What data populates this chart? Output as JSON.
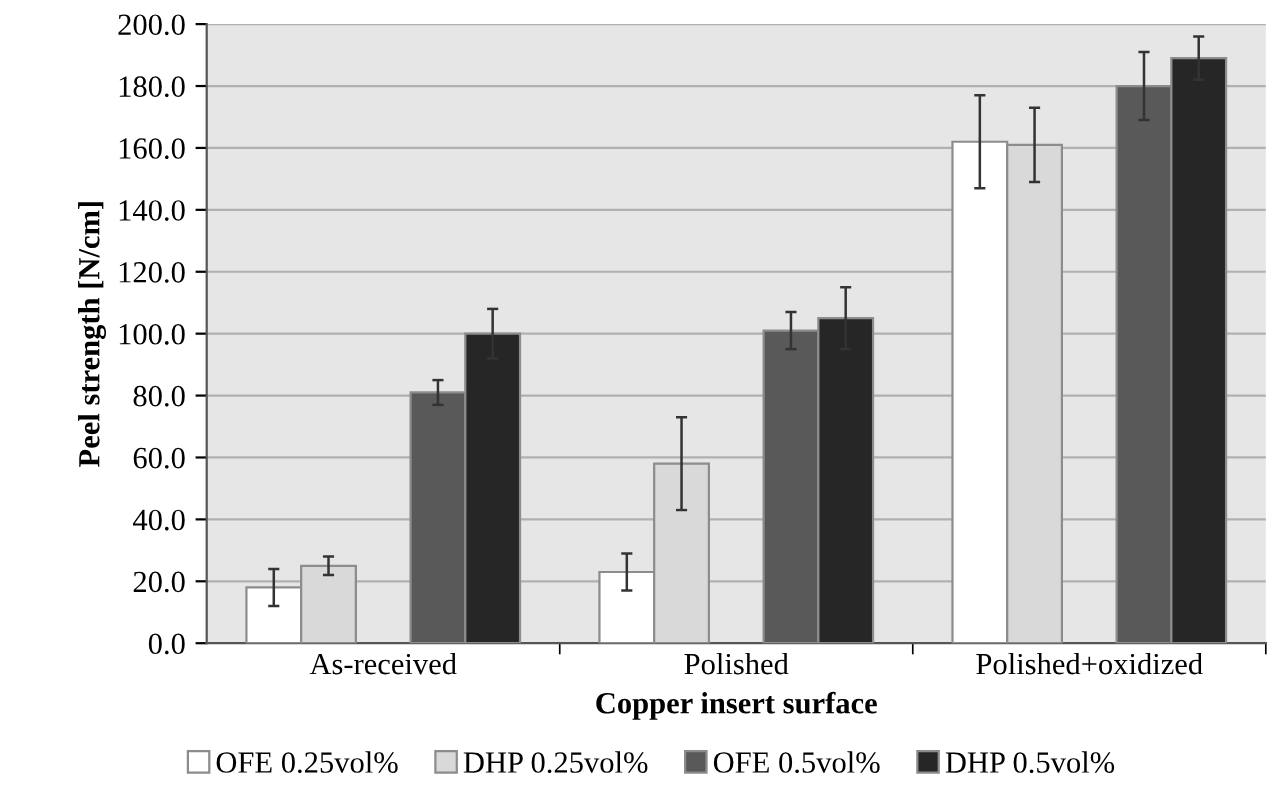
{
  "chart_data": {
    "type": "bar",
    "xlabel": "Copper insert surface",
    "ylabel": "Peel strength [N/cm]",
    "categories": [
      "As-received",
      "Polished",
      "Polished+oxidized"
    ],
    "series": [
      {
        "name": "OFE 0.25vol%",
        "color": "#ffffff",
        "values": [
          18,
          23,
          162
        ],
        "errors": [
          6,
          6,
          15
        ]
      },
      {
        "name": "DHP 0.25vol%",
        "color": "#d9d9d9",
        "values": [
          25,
          58,
          161
        ],
        "errors": [
          3,
          15,
          12
        ]
      },
      {
        "name": "OFE 0.5vol%",
        "color": "#595959",
        "values": [
          81,
          101,
          180
        ],
        "errors": [
          4,
          6,
          11
        ]
      },
      {
        "name": "DHP 0.5vol%",
        "color": "#262626",
        "values": [
          100,
          105,
          189
        ],
        "errors": [
          8,
          10,
          7
        ]
      }
    ],
    "ylim": [
      0,
      200
    ],
    "yticks": [
      {
        "value": 0,
        "label": "0.0"
      },
      {
        "value": 20,
        "label": "20.0"
      },
      {
        "value": 40,
        "label": "40.0"
      },
      {
        "value": 60,
        "label": "60.0"
      },
      {
        "value": 80,
        "label": "80.0"
      },
      {
        "value": 100,
        "label": "100.0"
      },
      {
        "value": 120,
        "label": "120.0"
      },
      {
        "value": 140,
        "label": "140.0"
      },
      {
        "value": 160,
        "label": "160.0"
      },
      {
        "value": 180,
        "label": "180.0"
      },
      {
        "value": 200,
        "label": "200.0"
      }
    ],
    "grid": "y",
    "legend": "bottom"
  }
}
